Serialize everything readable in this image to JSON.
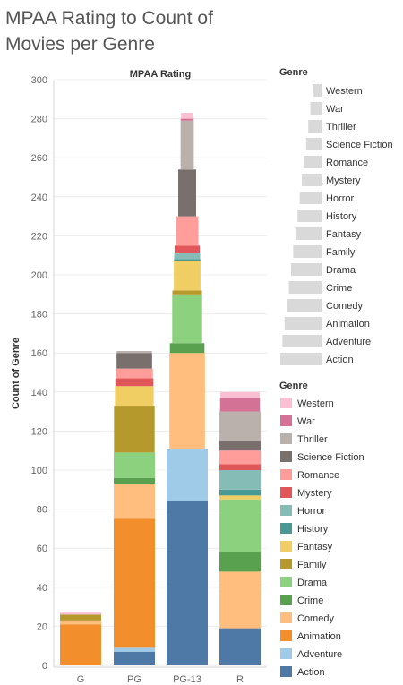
{
  "title": "MPAA Rating to Count of Movies per Genre",
  "chart_data": {
    "type": "bar",
    "stacked": true,
    "column_header": "MPAA Rating",
    "ylabel": "Count of Genre",
    "xlabel": "",
    "ylim": [
      0,
      300
    ],
    "yticks": [
      0,
      20,
      40,
      60,
      80,
      100,
      120,
      140,
      160,
      180,
      200,
      220,
      240,
      260,
      280,
      300
    ],
    "grid": true,
    "categories": [
      "G",
      "PG",
      "PG-13",
      "R"
    ],
    "series": [
      {
        "name": "Action",
        "color": "#4e79a7",
        "values": [
          0,
          7,
          84,
          19
        ]
      },
      {
        "name": "Adventure",
        "color": "#a0cbe8",
        "values": [
          0,
          2,
          27,
          0
        ]
      },
      {
        "name": "Animation",
        "color": "#f28e2b",
        "values": [
          21,
          66,
          0,
          0
        ]
      },
      {
        "name": "Comedy",
        "color": "#ffbe7d",
        "values": [
          2,
          18,
          49,
          29
        ]
      },
      {
        "name": "Crime",
        "color": "#59a14f",
        "values": [
          0,
          3,
          5,
          10
        ]
      },
      {
        "name": "Drama",
        "color": "#8cd17d",
        "values": [
          0,
          13,
          25,
          27
        ]
      },
      {
        "name": "Family",
        "color": "#b6992d",
        "values": [
          3,
          24,
          2,
          0
        ]
      },
      {
        "name": "Fantasy",
        "color": "#f1ce63",
        "values": [
          0,
          10,
          15,
          2
        ]
      },
      {
        "name": "History",
        "color": "#499894",
        "values": [
          0,
          0,
          1,
          3
        ]
      },
      {
        "name": "Horror",
        "color": "#86bcb6",
        "values": [
          0,
          0,
          3,
          10
        ]
      },
      {
        "name": "Mystery",
        "color": "#e15759",
        "values": [
          0,
          4,
          4,
          3
        ]
      },
      {
        "name": "Romance",
        "color": "#ff9d9a",
        "values": [
          0,
          5,
          15,
          7
        ]
      },
      {
        "name": "Science Fiction",
        "color": "#79706e",
        "values": [
          0,
          8,
          24,
          5
        ]
      },
      {
        "name": "Thriller",
        "color": "#bab0ac",
        "values": [
          0,
          1,
          25,
          15
        ]
      },
      {
        "name": "War",
        "color": "#d37295",
        "values": [
          0,
          0,
          1,
          7
        ]
      },
      {
        "name": "Western",
        "color": "#fabfd2",
        "values": [
          1,
          0,
          3,
          3
        ]
      }
    ],
    "legend_position": "right"
  },
  "size_legend": {
    "title": "Genre",
    "color": "#d9d9d9",
    "items": [
      "Western",
      "War",
      "Thriller",
      "Science Fiction",
      "Romance",
      "Mystery",
      "Horror",
      "History",
      "Fantasy",
      "Family",
      "Drama",
      "Crime",
      "Comedy",
      "Animation",
      "Adventure",
      "Action"
    ]
  },
  "color_legend": {
    "title": "Genre",
    "items": [
      "Western",
      "War",
      "Thriller",
      "Science Fiction",
      "Romance",
      "Mystery",
      "Horror",
      "History",
      "Fantasy",
      "Family",
      "Drama",
      "Crime",
      "Comedy",
      "Animation",
      "Adventure",
      "Action"
    ]
  }
}
